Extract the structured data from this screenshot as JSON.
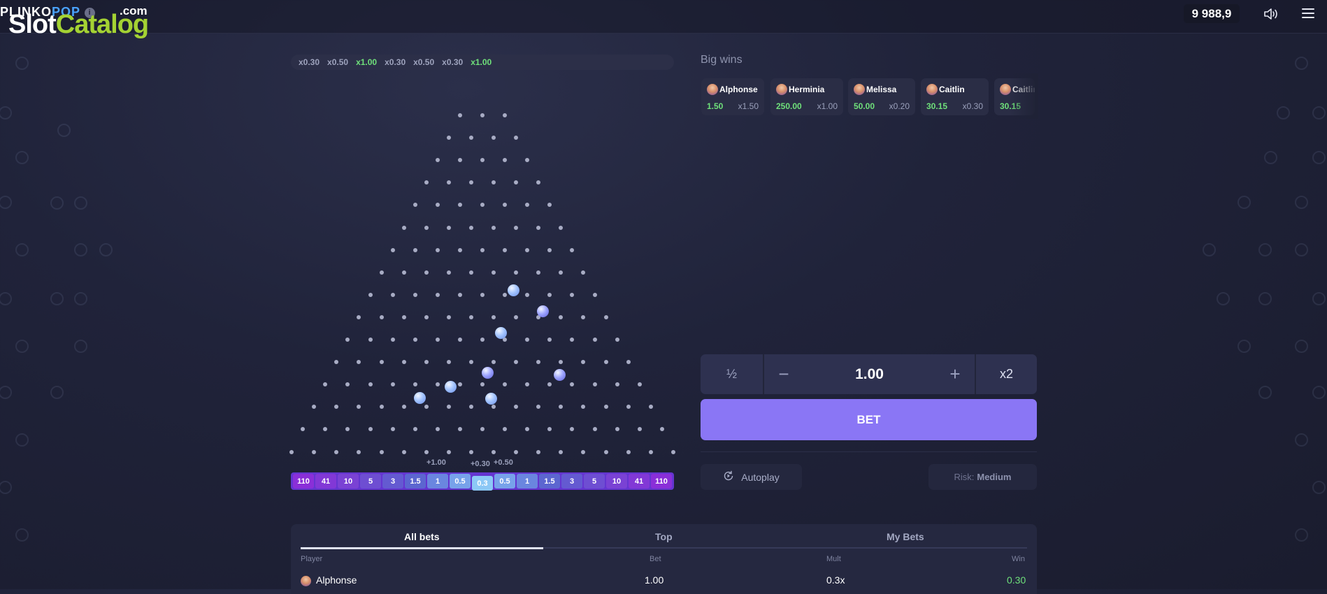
{
  "header": {
    "game_logo": "PLINKO",
    "game_logo_accent": "POP",
    "logo_domain": ".com",
    "brand_slot": "Slot",
    "brand_catalog": "Catalog",
    "balance": "9 988,9",
    "sound_icon": "speaker-icon",
    "menu_icon": "hamburger-icon"
  },
  "history": [
    {
      "label": "x0.30",
      "color": "#9ea3bd"
    },
    {
      "label": "x0.50",
      "color": "#9ea3bd"
    },
    {
      "label": "x1.00",
      "color": "#6fe07a"
    },
    {
      "label": "x0.30",
      "color": "#9ea3bd"
    },
    {
      "label": "x0.50",
      "color": "#9ea3bd"
    },
    {
      "label": "x0.30",
      "color": "#9ea3bd"
    },
    {
      "label": "x1.00",
      "color": "#6fe07a"
    }
  ],
  "board": {
    "peg_rows": 16,
    "balls_in_play": 8,
    "floating_results": [
      "+1.00",
      "+0.30",
      "+0.50"
    ],
    "multipliers": [
      "110",
      "41",
      "10",
      "5",
      "3",
      "1.5",
      "1",
      "0.5",
      "0.3",
      "0.5",
      "1",
      "1.5",
      "3",
      "5",
      "10",
      "41",
      "110"
    ],
    "highlighted_slot_label": "0.3"
  },
  "big_wins": {
    "title": "Big wins",
    "items": [
      {
        "name": "Alphonse",
        "amount": "1.50",
        "mult": "x1.50"
      },
      {
        "name": "Herminia",
        "amount": "250.00",
        "mult": "x1.00"
      },
      {
        "name": "Melissa",
        "amount": "50.00",
        "mult": "x0.20"
      },
      {
        "name": "Caitlin",
        "amount": "30.15",
        "mult": "x0.30"
      },
      {
        "name": "Caitlin",
        "amount": "30.15",
        "mult": ""
      }
    ]
  },
  "controls": {
    "half_label": "½",
    "minus_label": "−",
    "bet_amount": "1.00",
    "plus_label": "+",
    "double_label": "x2",
    "bet_button": "BET",
    "autoplay_label": "Autoplay",
    "autoplay_icon": "autoplay-icon",
    "risk_label": "Risk:",
    "risk_value": "Medium"
  },
  "bets_table": {
    "tabs": [
      "All bets",
      "Top",
      "My Bets"
    ],
    "active_tab": "All bets",
    "columns": [
      "Player",
      "Bet",
      "Mult",
      "Win"
    ],
    "rows": [
      {
        "player": "Alphonse",
        "bet": "1.00",
        "mult": "0.3x",
        "win": "0.30"
      }
    ]
  },
  "colors": {
    "accent": "#8a76f5",
    "win_green": "#6fe07a",
    "slot_bar": "#6435d0",
    "background": "#1f2236"
  }
}
